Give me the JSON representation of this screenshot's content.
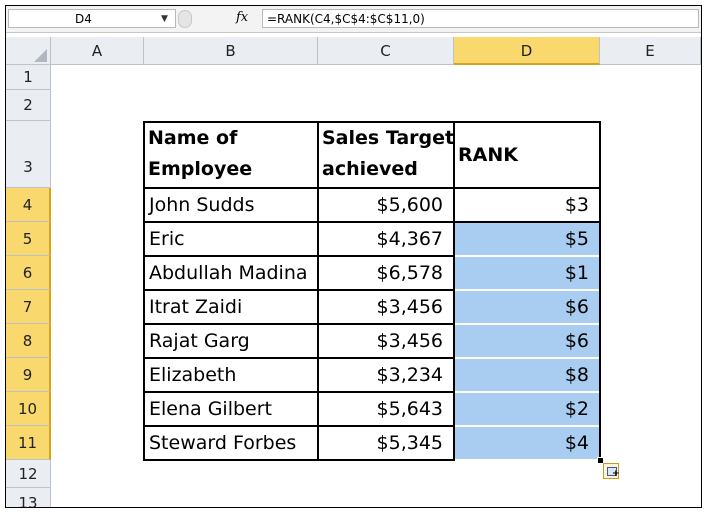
{
  "formula_bar": {
    "name_box": "D4",
    "fx_label": "fx",
    "formula": "=RANK(C4,$C$4:$C$11,0)"
  },
  "columns": [
    "A",
    "B",
    "C",
    "D",
    "E"
  ],
  "rows": [
    "1",
    "2",
    "3",
    "4",
    "5",
    "6",
    "7",
    "8",
    "9",
    "10",
    "11",
    "12",
    "13"
  ],
  "table": {
    "headers": {
      "name_line1": "Name of",
      "name_line2": "Employee",
      "sales_line1": "Sales Target",
      "sales_line2": "achieved",
      "rank": "RANK"
    },
    "data": [
      {
        "name": "John Sudds",
        "sales": "$5,600",
        "rank": "$3"
      },
      {
        "name": "Eric",
        "sales": "$4,367",
        "rank": "$5"
      },
      {
        "name": "Abdullah Madina",
        "sales": "$6,578",
        "rank": "$1"
      },
      {
        "name": "Itrat Zaidi",
        "sales": "$3,456",
        "rank": "$6"
      },
      {
        "name": "Rajat Garg",
        "sales": "$3,456",
        "rank": "$6"
      },
      {
        "name": "Elizabeth",
        "sales": "$3,234",
        "rank": "$8"
      },
      {
        "name": "Elena Gilbert",
        "sales": "$5,643",
        "rank": "$2"
      },
      {
        "name": "Steward Forbes",
        "sales": "$5,345",
        "rank": "$4"
      }
    ]
  },
  "colors": {
    "selection_fill": "#a9cdf0",
    "header_selected": "#f9d86d"
  }
}
